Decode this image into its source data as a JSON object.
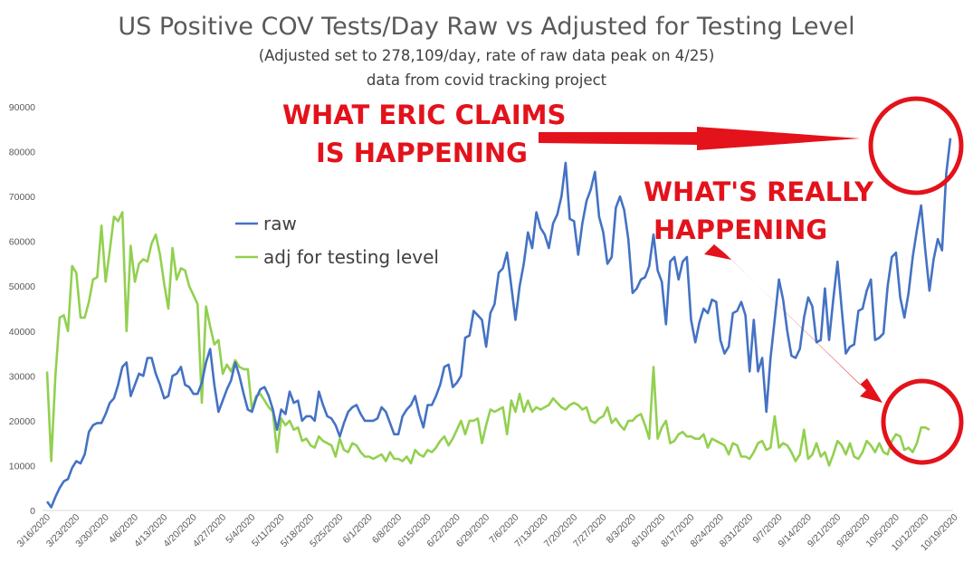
{
  "chart_data": {
    "type": "line",
    "title": "US Positive COV Tests/Day Raw vs Adjusted for Testing Level",
    "subtitle": "(Adjusted set to 278,109/day, rate of raw data peak on 4/25)",
    "subtitle2": "data from covid tracking project",
    "xlabel": "",
    "ylabel": "",
    "ylim": [
      0,
      90000
    ],
    "yticks": [
      0,
      10000,
      20000,
      30000,
      40000,
      50000,
      60000,
      70000,
      80000,
      90000
    ],
    "xtick_labels": [
      "3/16/2020",
      "3/23/2020",
      "3/30/2020",
      "4/6/2020",
      "4/13/2020",
      "4/20/2020",
      "4/27/2020",
      "5/4/2020",
      "5/11/2020",
      "5/18/2020",
      "5/25/2020",
      "6/1/2020",
      "6/8/2020",
      "6/15/2020",
      "6/22/2020",
      "6/29/2020",
      "7/6/2020",
      "7/13/2020",
      "7/20/2020",
      "7/27/2020",
      "8/3/2020",
      "8/10/2020",
      "8/17/2020",
      "8/24/2020",
      "8/31/2020",
      "9/7/2020",
      "9/14/2020",
      "9/21/2020",
      "9/28/2020",
      "10/5/2020",
      "10/12/2020",
      "10/19/2020"
    ],
    "start_date": "3/16/2020",
    "grid": false,
    "legend_position": "center-left",
    "colors": {
      "raw": "#4472c4",
      "adj": "#92d050",
      "annotation": "#e3121b",
      "axis": "#d9d9d9"
    },
    "series": [
      {
        "name": "raw",
        "values": [
          2000,
          700,
          3000,
          5000,
          6500,
          7000,
          9500,
          11000,
          10500,
          12500,
          17500,
          19000,
          19500,
          19500,
          21500,
          24000,
          25000,
          28000,
          32000,
          33000,
          25500,
          28000,
          30500,
          30000,
          34000,
          34000,
          30500,
          28000,
          25000,
          25500,
          30000,
          30500,
          32000,
          28000,
          27500,
          26000,
          26000,
          28500,
          33000,
          36000,
          28000,
          22000,
          24500,
          27000,
          29000,
          33000,
          30000,
          26000,
          22500,
          22000,
          25000,
          27000,
          27500,
          25500,
          22500,
          18000,
          22500,
          21500,
          26500,
          24000,
          24500,
          20000,
          21000,
          21000,
          20000,
          26500,
          23500,
          21000,
          20500,
          19000,
          16500,
          19500,
          22000,
          23000,
          23500,
          21500,
          20000,
          20000,
          20000,
          20500,
          23000,
          22000,
          19500,
          17000,
          17000,
          21000,
          22500,
          23500,
          25500,
          21500,
          18500,
          23500,
          23500,
          25500,
          28000,
          32000,
          32500,
          27500,
          28500,
          30000,
          38500,
          39000,
          44500,
          43500,
          42500,
          36500,
          44000,
          46000,
          53000,
          54000,
          57500,
          50000,
          42500,
          50000,
          55000,
          62000,
          58500,
          66500,
          63000,
          61500,
          58500,
          64000,
          66000,
          70000,
          77500,
          65000,
          64500,
          57000,
          64000,
          69000,
          71500,
          75500,
          65500,
          62000,
          55000,
          56500,
          67500,
          70000,
          67000,
          60500,
          48500,
          49500,
          51500,
          52000,
          54500,
          61500,
          53500,
          51000,
          41500,
          55500,
          56500,
          51500,
          55500,
          56500,
          42500,
          37500,
          42000,
          45000,
          44000,
          47000,
          46500,
          38000,
          35000,
          36500,
          44000,
          44500,
          46500,
          43500,
          31000,
          42500,
          31000,
          34000,
          22000,
          34000,
          42500,
          51500,
          47000,
          40000,
          34500,
          34000,
          36000,
          43000,
          47500,
          45500,
          37500,
          38000,
          49500,
          38000,
          47000,
          55500,
          45000,
          35000,
          36500,
          37000,
          44500,
          45000,
          49000,
          51500,
          38000,
          38500,
          39500,
          50000,
          56500,
          57500,
          47500,
          43000,
          48500,
          56500,
          62500,
          68000,
          58000,
          49000,
          56000,
          60500,
          58000,
          75000,
          83000
        ]
      },
      {
        "name": "adj for testing level",
        "values": [
          31000,
          11000,
          30000,
          43000,
          43500,
          40000,
          54500,
          53000,
          43000,
          43000,
          46500,
          51500,
          52000,
          63500,
          51000,
          58000,
          65500,
          64500,
          66500,
          40000,
          59000,
          51000,
          55000,
          56000,
          55500,
          59500,
          61500,
          57000,
          50500,
          45000,
          58500,
          51500,
          54000,
          53500,
          50000,
          48000,
          46000,
          24000,
          45500,
          41000,
          37000,
          38000,
          30500,
          32500,
          31000,
          33500,
          32000,
          31500,
          31500,
          22500,
          25500,
          26000,
          24500,
          23000,
          22000,
          13000,
          20500,
          19000,
          20000,
          18000,
          18500,
          15500,
          16000,
          14500,
          14000,
          16500,
          15500,
          15000,
          14500,
          12000,
          16000,
          13500,
          13000,
          15000,
          14500,
          13000,
          12000,
          12000,
          11500,
          12000,
          12500,
          11000,
          13000,
          11500,
          11500,
          11000,
          12000,
          10500,
          13500,
          12500,
          12000,
          13500,
          13000,
          14000,
          15500,
          16500,
          14500,
          16000,
          18000,
          20000,
          17000,
          20000,
          20000,
          20500,
          15000,
          19000,
          22500,
          22000,
          22500,
          23000,
          17000,
          24500,
          22000,
          26000,
          22000,
          24500,
          22000,
          23000,
          22500,
          23000,
          23500,
          25000,
          24000,
          23000,
          22500,
          23500,
          24000,
          23500,
          22500,
          23000,
          20000,
          19500,
          20500,
          21000,
          23000,
          19500,
          20500,
          19000,
          18000,
          20000,
          20000,
          21000,
          21500,
          19000,
          16000,
          32000,
          16000,
          18500,
          20000,
          15000,
          15500,
          17000,
          17500,
          16500,
          16500,
          16000,
          16000,
          17000,
          14000,
          16000,
          15500,
          15000,
          14500,
          12500,
          15000,
          14500,
          12000,
          12000,
          11500,
          13000,
          15000,
          15500,
          13500,
          14000,
          21000,
          14000,
          15000,
          14500,
          13000,
          11000,
          12500,
          18000,
          11500,
          12500,
          15000,
          12000,
          13000,
          10000,
          12500,
          15500,
          14500,
          12500,
          15000,
          12000,
          11500,
          13000,
          15500,
          14500,
          13000,
          15000,
          13000,
          12500,
          15500,
          17000,
          16500,
          13500,
          14000,
          13000,
          15000,
          18500,
          18500,
          18000
        ]
      }
    ],
    "annotations": {
      "eric_line1": "WHAT ERIC CLAIMS",
      "eric_line2": "IS HAPPENING",
      "really_line1": "WHAT'S REALLY",
      "really_line2": "HAPPENING"
    }
  }
}
